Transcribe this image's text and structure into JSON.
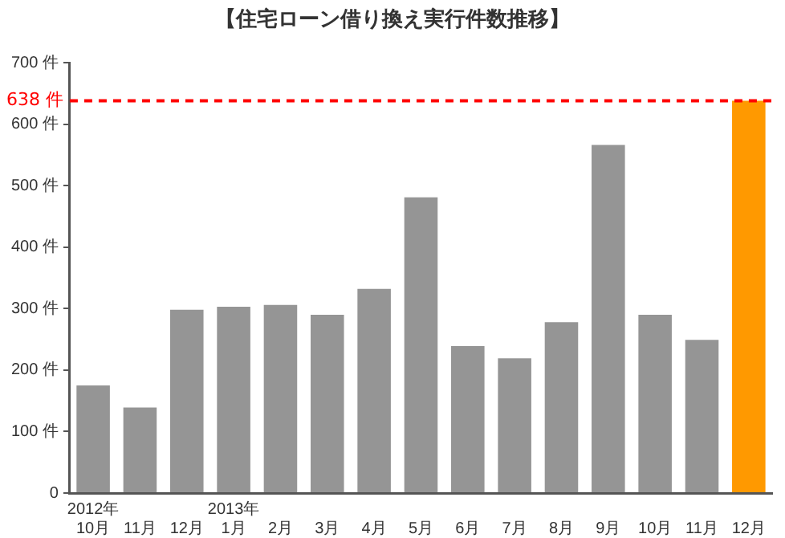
{
  "chart_data": {
    "type": "bar",
    "title": "【住宅ローン借り換え実行件数推移】",
    "categories": [
      "2012年\n10月",
      "11月",
      "12月",
      "2013年\n1月",
      "2月",
      "3月",
      "4月",
      "5月",
      "6月",
      "7月",
      "8月",
      "9月",
      "10月",
      "11月",
      "12月"
    ],
    "values": [
      175,
      139,
      298,
      303,
      306,
      290,
      332,
      481,
      239,
      219,
      278,
      566,
      290,
      249,
      638
    ],
    "colors": [
      "#959595",
      "#959595",
      "#959595",
      "#959595",
      "#959595",
      "#959595",
      "#959595",
      "#959595",
      "#959595",
      "#959595",
      "#959595",
      "#959595",
      "#959595",
      "#959595",
      "#ff9900"
    ],
    "ylim": [
      0,
      700
    ],
    "yticks": [
      {
        "value": 0,
        "label": "0"
      },
      {
        "value": 100,
        "label": "100 件"
      },
      {
        "value": 200,
        "label": "200 件"
      },
      {
        "value": 300,
        "label": "300 件"
      },
      {
        "value": 400,
        "label": "400 件"
      },
      {
        "value": 500,
        "label": "500 件"
      },
      {
        "value": 600,
        "label": "600 件"
      },
      {
        "value": 700,
        "label": "700 件"
      }
    ],
    "ref_lines": [
      {
        "axis": "y",
        "value": 638,
        "label": "638 件",
        "color": "#ff0000",
        "line_style": "dashed"
      }
    ],
    "grid": false,
    "legend": false
  }
}
